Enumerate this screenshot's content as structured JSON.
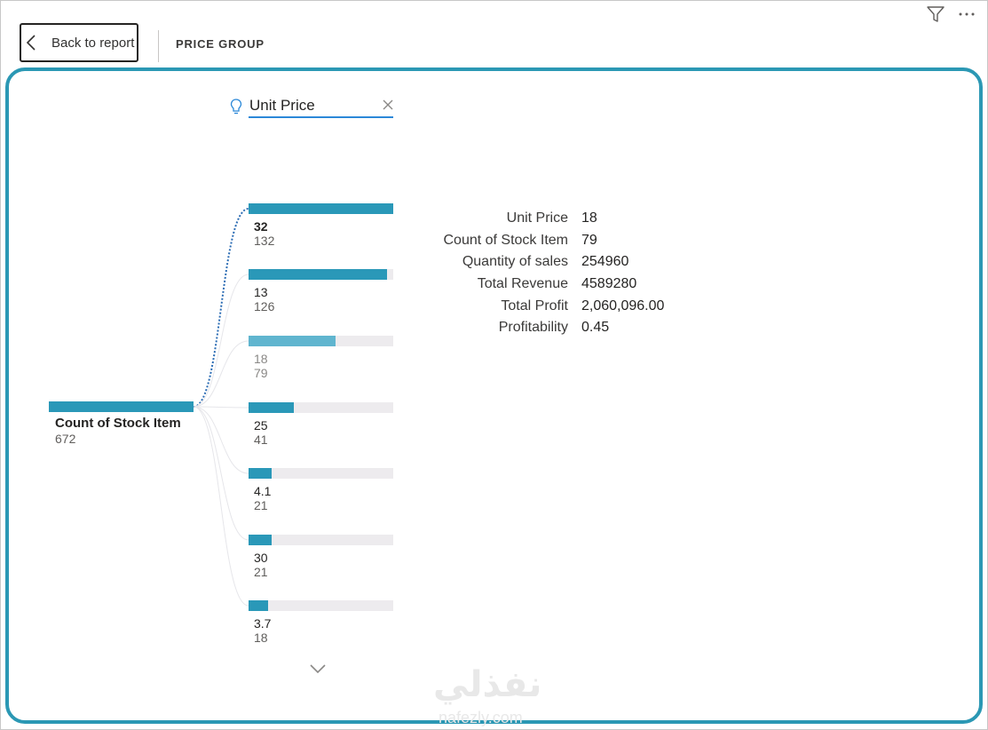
{
  "header": {
    "back_label": "Back to report",
    "page_title": "PRICE GROUP",
    "icons": [
      "filter-icon",
      "more-options-icon",
      "chevron-left-icon"
    ]
  },
  "tree": {
    "level_title": "Unit Price",
    "level_icons": [
      "lightbulb-icon",
      "close-icon",
      "chevron-down-icon"
    ],
    "root": {
      "label": "Count of Stock Item",
      "value": "672"
    },
    "nodes": [
      {
        "label": "32",
        "value": "132",
        "fraction": 1.0,
        "selected": true
      },
      {
        "label": "13",
        "value": "126",
        "fraction": 0.955
      },
      {
        "label": "18",
        "value": "79",
        "fraction": 0.6,
        "hovered": true
      },
      {
        "label": "25",
        "value": "41",
        "fraction": 0.31
      },
      {
        "label": "4.1",
        "value": "21",
        "fraction": 0.16
      },
      {
        "label": "30",
        "value": "21",
        "fraction": 0.16
      },
      {
        "label": "3.7",
        "value": "18",
        "fraction": 0.136
      }
    ]
  },
  "tooltip": {
    "rows": [
      {
        "label": "Unit Price",
        "value": "18"
      },
      {
        "label": "Count of Stock Item",
        "value": "79"
      },
      {
        "label": "Quantity of sales",
        "value": "254960"
      },
      {
        "label": "Total Revenue",
        "value": "4589280"
      },
      {
        "label": "Total Profit",
        "value": "2,060,096.00"
      },
      {
        "label": "Profitability",
        "value": "0.45"
      }
    ]
  },
  "colors": {
    "accent": "#2a98b8",
    "frame": "#2b98b4",
    "track": "#edebee",
    "hover": "#60b5cf"
  },
  "watermark": {
    "arabic": "نفذلي",
    "latin": "nafezly.com"
  }
}
